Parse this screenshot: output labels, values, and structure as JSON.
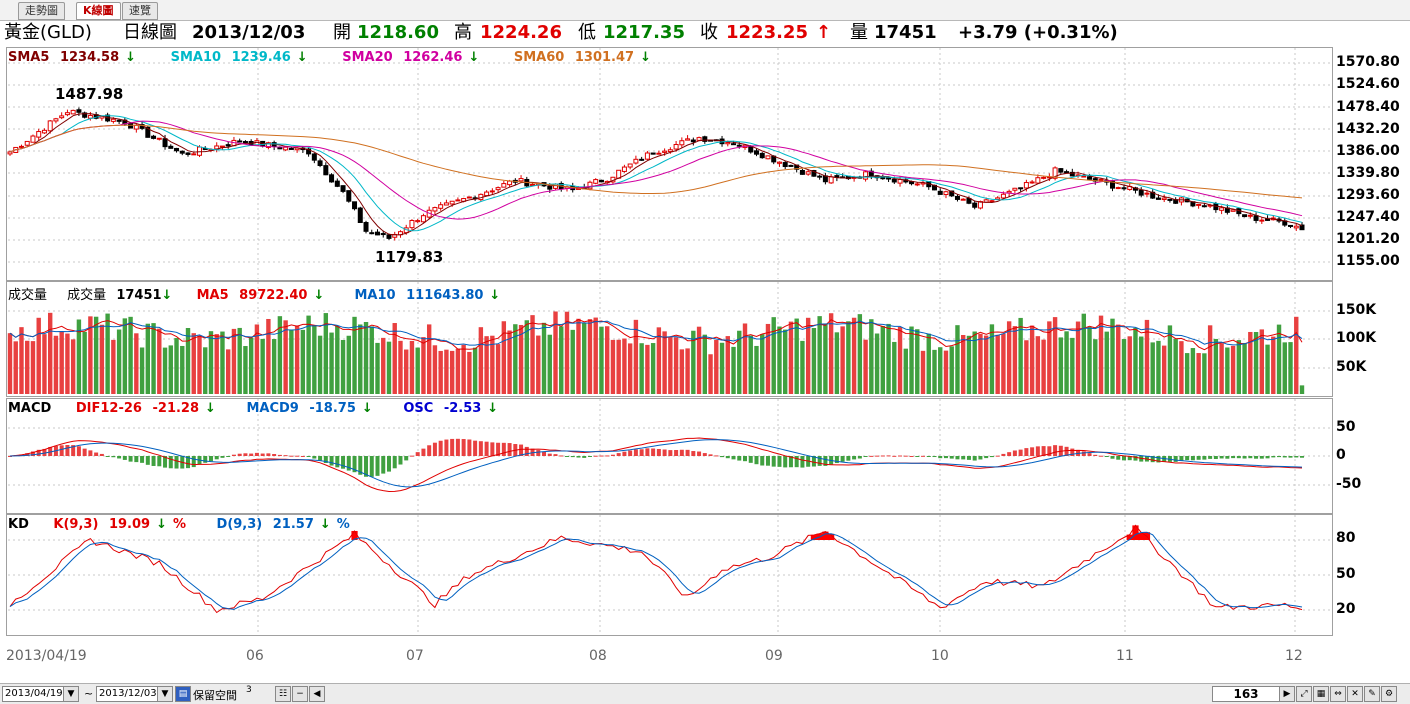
{
  "tabs": [
    {
      "label": "走勢圖"
    },
    {
      "label": "K線圖"
    },
    {
      "label": "速覽"
    }
  ],
  "info": {
    "name": "黃金(GLD)",
    "chart_kind": "日線圖",
    "date": "2013/12/03",
    "open_label": "開",
    "open": "1218.60",
    "high_label": "高",
    "high": "1224.26",
    "low_label": "低",
    "low": "1217.35",
    "close_label": "收",
    "close": "1223.25",
    "close_arrow": "↑",
    "volume_label": "量",
    "volume": "17451",
    "change": "+3.79 (+0.31%)"
  },
  "price_panel": {
    "legend": [
      {
        "label": "SMA5",
        "value": "1234.58",
        "arrow": "↓",
        "color": "#800000"
      },
      {
        "label": "SMA10",
        "value": "1239.46",
        "arrow": "↓",
        "color": "#00b8c8"
      },
      {
        "label": "SMA20",
        "value": "1262.46",
        "arrow": "↓",
        "color": "#d000a0"
      },
      {
        "label": "SMA60",
        "value": "1301.47",
        "arrow": "↓",
        "color": "#d07020"
      }
    ],
    "scale": [
      "1570.80",
      "1524.60",
      "1478.40",
      "1432.20",
      "1386.00",
      "1339.80",
      "1293.60",
      "1247.40",
      "1201.20",
      "1155.00"
    ],
    "high_mark": "1487.98",
    "low_mark": "1179.83"
  },
  "volume_panel": {
    "title": "成交量",
    "legend_label": "成交量",
    "legend_value": "17451",
    "legend_arrow": "↓",
    "ma5_label": "MA5",
    "ma5_value": "89722.40",
    "ma5_arrow": "↓",
    "ma10_label": "MA10",
    "ma10_value": "111643.80",
    "ma10_arrow": "↓",
    "scale": [
      "150K",
      "100K",
      "50K"
    ]
  },
  "macd_panel": {
    "title": "MACD",
    "dif_label": "DIF12-26",
    "dif_value": "-21.28",
    "dif_arrow": "↓",
    "macd_label": "MACD9",
    "macd_value": "-18.75",
    "macd_arrow": "↓",
    "osc_label": "OSC",
    "osc_value": "-2.53",
    "osc_arrow": "↓",
    "scale": [
      "50",
      "0",
      "-50"
    ]
  },
  "kd_panel": {
    "title": "KD",
    "k_label": "K(9,3)",
    "k_value": "19.09",
    "k_arrow": "↓",
    "k_unit": "%",
    "d_label": "D(9,3)",
    "d_value": "21.57",
    "d_arrow": "↓",
    "d_unit": "%",
    "scale": [
      "80",
      "50",
      "20"
    ]
  },
  "x_axis": [
    "2013/04/19",
    "06",
    "07",
    "08",
    "09",
    "10",
    "11",
    "12"
  ],
  "bottom": {
    "start_date": "2013/04/19",
    "tilde": "~",
    "end_date": "2013/12/03",
    "reserve_label": "保留空間",
    "reserve_value": "3",
    "count": "163"
  },
  "chart_data": {
    "type": "candlestick",
    "bars": 163,
    "price_range": [
      1155.0,
      1570.8
    ],
    "keypoints_close": [
      [
        0,
        1385
      ],
      [
        10,
        1470
      ],
      [
        20,
        1448
      ],
      [
        30,
        1380
      ],
      [
        40,
        1408
      ],
      [
        52,
        1386
      ],
      [
        58,
        1300
      ],
      [
        62,
        1220
      ],
      [
        66,
        1205
      ],
      [
        72,
        1255
      ],
      [
        80,
        1290
      ],
      [
        88,
        1325
      ],
      [
        98,
        1305
      ],
      [
        104,
        1330
      ],
      [
        112,
        1385
      ],
      [
        120,
        1415
      ],
      [
        126,
        1405
      ],
      [
        135,
        1360
      ],
      [
        142,
        1325
      ],
      [
        150,
        1340
      ],
      [
        160,
        1312
      ],
      [
        168,
        1270
      ],
      [
        176,
        1308
      ],
      [
        182,
        1345
      ],
      [
        190,
        1322
      ],
      [
        200,
        1290
      ],
      [
        208,
        1275
      ],
      [
        216,
        1248
      ],
      [
        222,
        1238
      ],
      [
        226,
        1222
      ]
    ],
    "high_label": "1487.98",
    "low_label": "1179.83",
    "volume_range": [
      0,
      190000
    ],
    "macd_range": [
      -70,
      70
    ],
    "kd_range": [
      0,
      100
    ],
    "kd_keypoints_k": [
      [
        0,
        25
      ],
      [
        14,
        80
      ],
      [
        26,
        60
      ],
      [
        36,
        20
      ],
      [
        44,
        30
      ],
      [
        60,
        85
      ],
      [
        74,
        25
      ],
      [
        80,
        50
      ],
      [
        96,
        82
      ],
      [
        110,
        70
      ],
      [
        118,
        30
      ],
      [
        124,
        55
      ],
      [
        132,
        65
      ],
      [
        142,
        88
      ],
      [
        152,
        55
      ],
      [
        162,
        22
      ],
      [
        170,
        45
      ],
      [
        180,
        40
      ],
      [
        196,
        90
      ],
      [
        210,
        22
      ],
      [
        222,
        24
      ],
      [
        226,
        20
      ]
    ]
  }
}
